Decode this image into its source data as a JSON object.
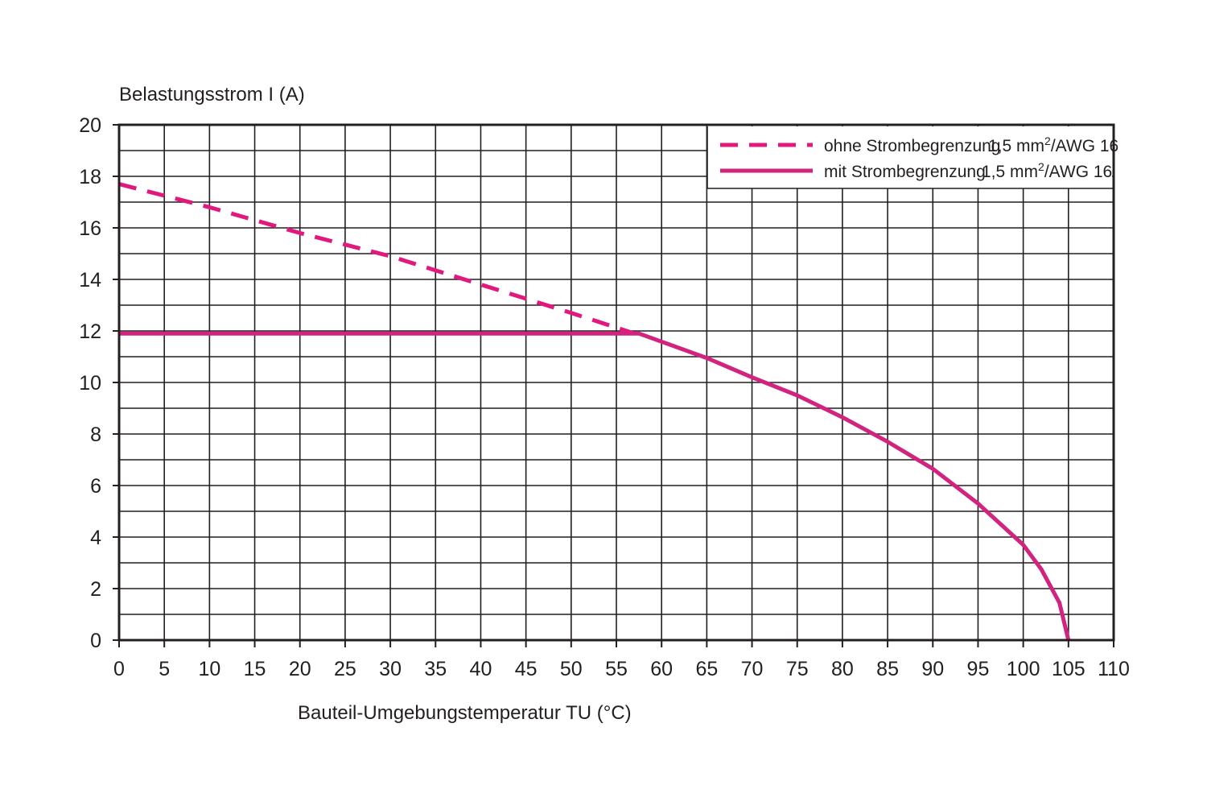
{
  "chart_data": {
    "type": "line",
    "ylabel": "Belastungsstrom I (A)",
    "xlabel": "Bauteil-Umgebungstemperatur TU (°C)",
    "xlim": [
      0,
      110
    ],
    "ylim": [
      0,
      20
    ],
    "x_ticks": [
      0,
      5,
      10,
      15,
      20,
      25,
      30,
      35,
      40,
      45,
      50,
      55,
      60,
      65,
      70,
      75,
      80,
      85,
      90,
      95,
      100,
      105,
      110
    ],
    "y_ticks": [
      0,
      2,
      4,
      6,
      8,
      10,
      12,
      14,
      16,
      18,
      20
    ],
    "grid": true,
    "legend_position": "top-right",
    "series": [
      {
        "name": "ohne Strombegrenzung",
        "spec_main": "1,5 mm",
        "spec_sup": "2",
        "spec_tail": "/AWG 16",
        "color": "#e2197d",
        "style": "dashed",
        "points": [
          [
            0,
            17.7
          ],
          [
            10,
            16.8
          ],
          [
            20,
            15.8
          ],
          [
            30,
            14.9
          ],
          [
            40,
            13.8
          ],
          [
            50,
            12.7
          ],
          [
            57,
            11.9
          ]
        ]
      },
      {
        "name": "mit Strombegrenzung",
        "spec_main": "1,5 mm",
        "spec_sup": "2",
        "spec_tail": "/AWG 16",
        "color": "#d2237f",
        "style": "solid",
        "points": [
          [
            0,
            11.9
          ],
          [
            57.5,
            11.9
          ],
          [
            65,
            10.95
          ],
          [
            70,
            10.2
          ],
          [
            75,
            9.5
          ],
          [
            80,
            8.65
          ],
          [
            85,
            7.7
          ],
          [
            90,
            6.65
          ],
          [
            95,
            5.3
          ],
          [
            100,
            3.7
          ],
          [
            102,
            2.75
          ],
          [
            104,
            1.45
          ],
          [
            105,
            0
          ]
        ]
      }
    ]
  }
}
